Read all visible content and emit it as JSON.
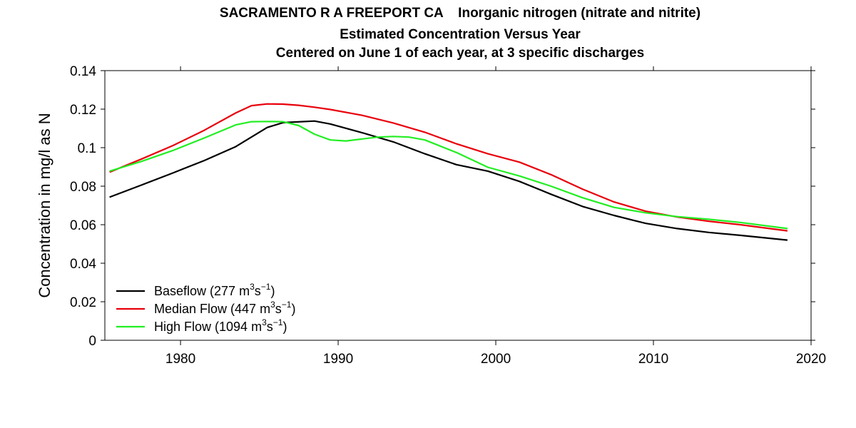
{
  "chart_data": {
    "type": "line",
    "title": "SACRAMENTO R A FREEPORT CA    Inorganic nitrogen (nitrate and nitrite)",
    "subtitle": "Estimated Concentration Versus Year",
    "subtitle2": "Centered on June 1 of each year, at 3 specific discharges",
    "xlabel": "",
    "ylabel": "Concentration in mg/l as N",
    "xlim": [
      1975.2,
      2020
    ],
    "ylim": [
      0,
      0.14
    ],
    "xticks": [
      "1980",
      "1990",
      "2000",
      "2010",
      "2020"
    ],
    "yticks": [
      "0",
      "0.02",
      "0.04",
      "0.06",
      "0.08",
      "0.1",
      "0.12",
      "0.14"
    ],
    "grid": false,
    "legend_position": "bottom-left",
    "series": [
      {
        "name": "Baseflow (277 m³s⁻¹)",
        "legend_prefix": "Baseflow (277 m",
        "legend_sup1": "3",
        "legend_mid": "s",
        "legend_sup2": "−1",
        "legend_suffix": ")",
        "color": "#000000",
        "x": [
          1975.5,
          1977.5,
          1979.5,
          1981.5,
          1983.5,
          1985.5,
          1986.5,
          1988.5,
          1989.5,
          1991.5,
          1993.5,
          1995.5,
          1997.5,
          1999.5,
          2001.5,
          2003.5,
          2005.5,
          2007.5,
          2009.5,
          2011.5,
          2013.5,
          2015.5,
          2018.5
        ],
        "y": [
          0.0743,
          0.0805,
          0.0868,
          0.0933,
          0.1005,
          0.1105,
          0.113,
          0.1138,
          0.1123,
          0.1078,
          0.103,
          0.0968,
          0.0912,
          0.0878,
          0.0825,
          0.0758,
          0.0695,
          0.0648,
          0.0607,
          0.058,
          0.056,
          0.0545,
          0.052
        ]
      },
      {
        "name": "Median Flow (447 m³s⁻¹)",
        "legend_prefix": "Median Flow (447 m",
        "legend_sup1": "3",
        "legend_mid": "s",
        "legend_sup2": "−1",
        "legend_suffix": ")",
        "color": "#e8000b",
        "x": [
          1975.5,
          1977.5,
          1979.5,
          1981.5,
          1983.5,
          1984.5,
          1985.5,
          1986.5,
          1987.5,
          1988.5,
          1989.5,
          1991.5,
          1993.5,
          1995.5,
          1997.5,
          1999.5,
          2001.5,
          2003.5,
          2005.5,
          2007.5,
          2009.5,
          2011.5,
          2013.5,
          2015.5,
          2018.5
        ],
        "y": [
          0.0873,
          0.094,
          0.101,
          0.109,
          0.118,
          0.1218,
          0.1227,
          0.1226,
          0.122,
          0.121,
          0.1198,
          0.1168,
          0.1128,
          0.108,
          0.102,
          0.0968,
          0.0925,
          0.086,
          0.0785,
          0.0718,
          0.067,
          0.064,
          0.0618,
          0.06,
          0.0568
        ]
      },
      {
        "name": "High Flow (1094 m³s⁻¹)",
        "legend_prefix": "High Flow (1094 m",
        "legend_sup1": "3",
        "legend_mid": "s",
        "legend_sup2": "−1",
        "legend_suffix": ")",
        "color": "#22ee22",
        "x": [
          1975.5,
          1977.5,
          1979.5,
          1981.5,
          1983.5,
          1984.5,
          1985.5,
          1986.5,
          1987.5,
          1988.5,
          1989.5,
          1990.5,
          1991.5,
          1992.5,
          1993.5,
          1994.5,
          1995.5,
          1997.5,
          1999.5,
          2001.5,
          2003.5,
          2005.5,
          2007.5,
          2009.5,
          2011.5,
          2013.5,
          2015.5,
          2018.5
        ],
        "y": [
          0.0878,
          0.0928,
          0.0985,
          0.105,
          0.1118,
          0.1135,
          0.1136,
          0.1135,
          0.1115,
          0.107,
          0.104,
          0.1035,
          0.1045,
          0.1055,
          0.1058,
          0.1055,
          0.104,
          0.0975,
          0.0898,
          0.0853,
          0.08,
          0.074,
          0.069,
          0.0662,
          0.0642,
          0.0628,
          0.0612,
          0.058
        ]
      }
    ]
  }
}
